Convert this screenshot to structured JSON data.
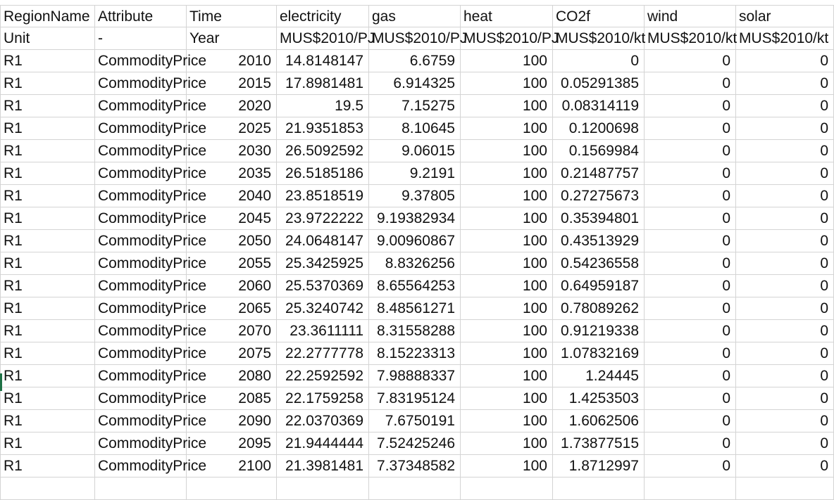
{
  "sheet": {
    "header": [
      "RegionName",
      "Attribute",
      "Time",
      "electricity",
      "gas",
      "heat",
      "CO2f",
      "wind",
      "solar"
    ],
    "units": [
      "Unit",
      "-",
      "Year",
      "MUS$2010/PJ",
      "MUS$2010/PJ",
      "MUS$2010/PJ",
      "MUS$2010/kt",
      "MUS$2010/kt",
      "MUS$2010/kt"
    ],
    "rows": [
      [
        "R1",
        "CommodityPrice",
        "2010",
        "14.8148147",
        "6.6759",
        "100",
        "0",
        "0",
        "0"
      ],
      [
        "R1",
        "CommodityPrice",
        "2015",
        "17.8981481",
        "6.914325",
        "100",
        "0.05291385",
        "0",
        "0"
      ],
      [
        "R1",
        "CommodityPrice",
        "2020",
        "19.5",
        "7.15275",
        "100",
        "0.08314119",
        "0",
        "0"
      ],
      [
        "R1",
        "CommodityPrice",
        "2025",
        "21.9351853",
        "8.10645",
        "100",
        "0.1200698",
        "0",
        "0"
      ],
      [
        "R1",
        "CommodityPrice",
        "2030",
        "26.5092592",
        "9.06015",
        "100",
        "0.1569984",
        "0",
        "0"
      ],
      [
        "R1",
        "CommodityPrice",
        "2035",
        "26.5185186",
        "9.2191",
        "100",
        "0.21487757",
        "0",
        "0"
      ],
      [
        "R1",
        "CommodityPrice",
        "2040",
        "23.8518519",
        "9.37805",
        "100",
        "0.27275673",
        "0",
        "0"
      ],
      [
        "R1",
        "CommodityPrice",
        "2045",
        "23.9722222",
        "9.19382934",
        "100",
        "0.35394801",
        "0",
        "0"
      ],
      [
        "R1",
        "CommodityPrice",
        "2050",
        "24.0648147",
        "9.00960867",
        "100",
        "0.43513929",
        "0",
        "0"
      ],
      [
        "R1",
        "CommodityPrice",
        "2055",
        "25.3425925",
        "8.8326256",
        "100",
        "0.54236558",
        "0",
        "0"
      ],
      [
        "R1",
        "CommodityPrice",
        "2060",
        "25.5370369",
        "8.65564253",
        "100",
        "0.64959187",
        "0",
        "0"
      ],
      [
        "R1",
        "CommodityPrice",
        "2065",
        "25.3240742",
        "8.48561271",
        "100",
        "0.78089262",
        "0",
        "0"
      ],
      [
        "R1",
        "CommodityPrice",
        "2070",
        "23.3611111",
        "8.31558288",
        "100",
        "0.91219338",
        "0",
        "0"
      ],
      [
        "R1",
        "CommodityPrice",
        "2075",
        "22.2777778",
        "8.15223313",
        "100",
        "1.07832169",
        "0",
        "0"
      ],
      [
        "R1",
        "CommodityPrice",
        "2080",
        "22.2592592",
        "7.98888337",
        "100",
        "1.24445",
        "0",
        "0"
      ],
      [
        "R1",
        "CommodityPrice",
        "2085",
        "22.1759258",
        "7.83195124",
        "100",
        "1.4253503",
        "0",
        "0"
      ],
      [
        "R1",
        "CommodityPrice",
        "2090",
        "22.0370369",
        "7.6750191",
        "100",
        "1.6062506",
        "0",
        "0"
      ],
      [
        "R1",
        "CommodityPrice",
        "2095",
        "21.9444444",
        "7.52425246",
        "100",
        "1.73877515",
        "0",
        "0"
      ],
      [
        "R1",
        "CommodityPrice",
        "2100",
        "21.3981481",
        "7.37348582",
        "100",
        "1.8712997",
        "0",
        "0"
      ]
    ]
  }
}
